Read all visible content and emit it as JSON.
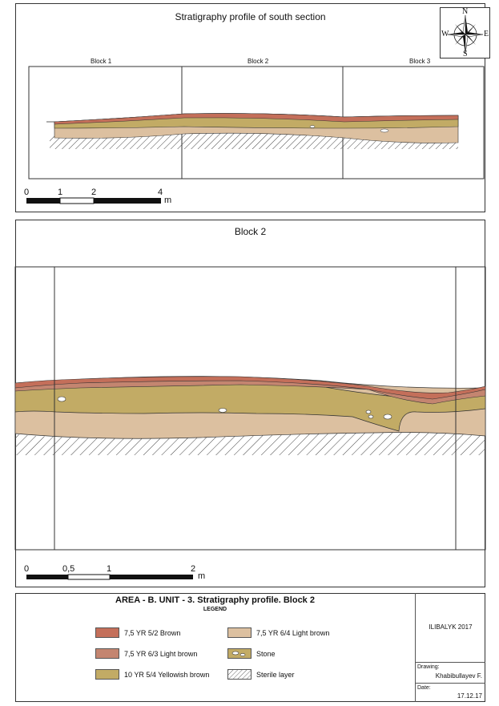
{
  "panel1": {
    "title": "Stratigraphy profile of south section",
    "blocks": [
      "Block 1",
      "Block 2",
      "Block 3"
    ],
    "scale": {
      "ticks": [
        "0",
        "1",
        "2",
        "4"
      ],
      "unit": "m"
    }
  },
  "compass": {
    "n": "N",
    "s": "S",
    "e": "E",
    "w": "W"
  },
  "panel2": {
    "title": "Block 2",
    "scale": {
      "ticks": [
        "0",
        "0,5",
        "1",
        "2"
      ],
      "unit": "m"
    }
  },
  "legend": {
    "title": "AREA - B. UNIT - 3. Stratigraphy profile. Block 2",
    "subtitle": "LEGEND",
    "items": [
      {
        "label": "7,5 YR 5/2 Brown",
        "color": "#c46f5a"
      },
      {
        "label": "7,5 YR 6/3 Light brown",
        "color": "#c48570"
      },
      {
        "label": "10 YR 5/4 Yellowish brown",
        "color": "#c2ab65"
      },
      {
        "label": "7,5 YR 6/4 Light brown",
        "color": "#dcc0a0"
      },
      {
        "label": "Stone",
        "color": "#c2ab65"
      },
      {
        "label": "Sterile layer",
        "color": "#ffffff"
      }
    ]
  },
  "titleblock": {
    "site": "ILIBALYK 2017",
    "drawing_label": "Drawing:",
    "drawing_value": "Khabibullayev F.",
    "date_label": "Date:",
    "date_value": "17.12.17"
  }
}
